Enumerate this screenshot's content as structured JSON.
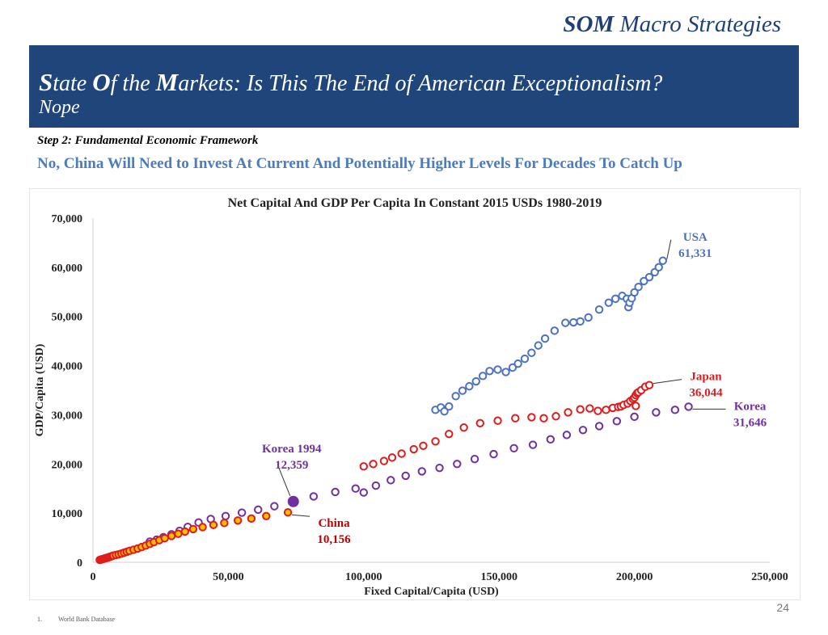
{
  "header": {
    "brand_bold": "SOM",
    "brand_rest": " Macro Strategies",
    "title_parts": [
      {
        "text": "S",
        "big": true
      },
      {
        "text": "tate ",
        "big": false
      },
      {
        "text": "O",
        "big": true
      },
      {
        "text": "f the ",
        "big": false
      },
      {
        "text": "M",
        "big": true
      },
      {
        "text": "arkets: Is This The End of American Exceptionalism?",
        "big": false
      }
    ],
    "subtitle": "Nope",
    "step": "Step 2: Fundamental Economic Framework",
    "headline": "No, China Will Need to Invest At Current And Potentially Higher Levels For Decades To Catch Up"
  },
  "footer": {
    "page_number": "24",
    "footnote_index": "1.",
    "footnote_text": "World Bank Database"
  },
  "chart_data": {
    "type": "scatter",
    "title": "Net Capital And GDP Per Capita In Constant 2015 USDs 1980-2019",
    "xlabel": "Fixed Capital/Capita (USD)",
    "ylabel": "GDP/Capita (USD)",
    "xlim": [
      0,
      250000
    ],
    "ylim": [
      0,
      70000
    ],
    "x_ticks": [
      0,
      50000,
      100000,
      150000,
      200000,
      250000
    ],
    "x_tick_labels": [
      "0",
      "50,000",
      "100,000",
      "150,000",
      "200,000",
      "250,000"
    ],
    "y_ticks": [
      0,
      10000,
      20000,
      30000,
      40000,
      50000,
      60000,
      70000
    ],
    "y_tick_labels": [
      "0",
      "10,000",
      "20,000",
      "30,000",
      "40,000",
      "50,000",
      "60,000",
      "70,000"
    ],
    "grid": false,
    "series": [
      {
        "color": "#4a72c0",
        "marker": "hollow-circle",
        "points": [
          [
            126500,
            31000
          ],
          [
            128500,
            31500
          ],
          [
            129800,
            30700
          ],
          [
            131500,
            31700
          ],
          [
            134000,
            33800
          ],
          [
            136500,
            34900
          ],
          [
            139000,
            35800
          ],
          [
            141500,
            36800
          ],
          [
            144000,
            37900
          ],
          [
            146500,
            38900
          ],
          [
            149500,
            39200
          ],
          [
            152500,
            38700
          ],
          [
            155000,
            39600
          ],
          [
            157000,
            40400
          ],
          [
            159500,
            41400
          ],
          [
            162000,
            42600
          ],
          [
            164500,
            44100
          ],
          [
            167000,
            45500
          ],
          [
            170500,
            47100
          ],
          [
            174500,
            48700
          ],
          [
            177500,
            48800
          ],
          [
            180000,
            49000
          ],
          [
            183000,
            49800
          ],
          [
            187000,
            51400
          ],
          [
            190500,
            52800
          ],
          [
            193000,
            53600
          ],
          [
            195500,
            54200
          ],
          [
            197200,
            53600
          ],
          [
            197800,
            51900
          ],
          [
            198200,
            52800
          ],
          [
            199000,
            53700
          ],
          [
            200000,
            54900
          ],
          [
            201500,
            56000
          ],
          [
            203500,
            57200
          ],
          [
            205500,
            58000
          ],
          [
            207500,
            59000
          ],
          [
            209000,
            60000
          ],
          [
            210500,
            61331
          ]
        ]
      },
      {
        "color": "#e01b1b",
        "marker": "hollow-circle",
        "points": [
          [
            100000,
            19500
          ],
          [
            103500,
            20000
          ],
          [
            107500,
            20600
          ],
          [
            110500,
            21300
          ],
          [
            114000,
            22100
          ],
          [
            118500,
            23000
          ],
          [
            122000,
            23700
          ],
          [
            126500,
            24600
          ],
          [
            131500,
            26100
          ],
          [
            137000,
            27400
          ],
          [
            143000,
            28300
          ],
          [
            149500,
            28800
          ],
          [
            156000,
            29300
          ],
          [
            162000,
            29500
          ],
          [
            166500,
            29300
          ],
          [
            171000,
            29700
          ],
          [
            175500,
            30500
          ],
          [
            180000,
            31100
          ],
          [
            183500,
            31300
          ],
          [
            186500,
            30800
          ],
          [
            189500,
            31000
          ],
          [
            192000,
            31400
          ],
          [
            194000,
            31600
          ],
          [
            195000,
            31700
          ],
          [
            196000,
            32000
          ],
          [
            197500,
            32300
          ],
          [
            198500,
            32800
          ],
          [
            199500,
            33200
          ],
          [
            200000,
            33500
          ],
          [
            200500,
            34000
          ],
          [
            201000,
            34400
          ],
          [
            201500,
            34600
          ],
          [
            202500,
            35000
          ],
          [
            204000,
            35700
          ],
          [
            205500,
            36044
          ],
          [
            200500,
            31800
          ]
        ]
      },
      {
        "color": "#7030a0",
        "marker": "hollow-circle",
        "points": [
          [
            21000,
            4200
          ],
          [
            23500,
            4600
          ],
          [
            26000,
            5100
          ],
          [
            29000,
            5700
          ],
          [
            32000,
            6400
          ],
          [
            35000,
            7200
          ],
          [
            39000,
            8100
          ],
          [
            43500,
            8800
          ],
          [
            49000,
            9400
          ],
          [
            55000,
            10100
          ],
          [
            61000,
            10700
          ],
          [
            67000,
            11400
          ],
          [
            81500,
            13400
          ],
          [
            89500,
            14300
          ],
          [
            97000,
            15000
          ],
          [
            100000,
            14200
          ],
          [
            104500,
            15600
          ],
          [
            110000,
            16700
          ],
          [
            115500,
            17600
          ],
          [
            121500,
            18500
          ],
          [
            128000,
            19200
          ],
          [
            134500,
            20000
          ],
          [
            141000,
            21000
          ],
          [
            148000,
            22000
          ],
          [
            155500,
            23200
          ],
          [
            162500,
            23900
          ],
          [
            169000,
            25000
          ],
          [
            175000,
            25900
          ],
          [
            181000,
            26900
          ],
          [
            187000,
            27700
          ],
          [
            193500,
            28700
          ],
          [
            200000,
            29600
          ],
          [
            208000,
            30500
          ],
          [
            215000,
            31000
          ],
          [
            220000,
            31646
          ]
        ]
      },
      {
        "color": "#e01b1b",
        "fill": "#ffc000",
        "marker": "filled-circle",
        "points": [
          [
            2500,
            480
          ],
          [
            3000,
            560
          ],
          [
            3500,
            640
          ],
          [
            4000,
            720
          ],
          [
            4500,
            800
          ],
          [
            5000,
            900
          ],
          [
            5500,
            980
          ],
          [
            6000,
            1070
          ],
          [
            6500,
            1160
          ],
          [
            7000,
            1260
          ],
          [
            7500,
            1360
          ],
          [
            8500,
            1480
          ],
          [
            9500,
            1620
          ],
          [
            10500,
            1780
          ],
          [
            11500,
            1950
          ],
          [
            12500,
            2130
          ],
          [
            13500,
            2330
          ],
          [
            15000,
            2550
          ],
          [
            16500,
            2800
          ],
          [
            18000,
            3100
          ],
          [
            19500,
            3400
          ],
          [
            21000,
            3750
          ],
          [
            22500,
            4100
          ],
          [
            24500,
            4500
          ],
          [
            26500,
            4900
          ],
          [
            29000,
            5350
          ],
          [
            31500,
            5800
          ],
          [
            34000,
            6250
          ],
          [
            37000,
            6750
          ],
          [
            40500,
            7150
          ],
          [
            44500,
            7600
          ],
          [
            48500,
            8000
          ],
          [
            53500,
            8500
          ],
          [
            58500,
            8900
          ],
          [
            64000,
            9400
          ],
          [
            72000,
            10156
          ]
        ]
      },
      {
        "color": "#7030a0",
        "fill": "#7030a0",
        "marker": "filled-circle-large",
        "points": [
          [
            74000,
            12359
          ]
        ]
      }
    ],
    "annotations": [
      {
        "lines": [
          "USA",
          "61,331"
        ],
        "color": "#4a72c0",
        "x": 210500,
        "y": 61331
      },
      {
        "lines": [
          "Japan",
          "36,044"
        ],
        "color": "#e01b1b",
        "x": 205500,
        "y": 36044
      },
      {
        "lines": [
          "Korea",
          "31,646"
        ],
        "color": "#7030a0",
        "x": 220000,
        "y": 31646
      },
      {
        "lines": [
          "Korea 1994",
          "12,359"
        ],
        "color": "#7030a0",
        "x": 74000,
        "y": 12359
      },
      {
        "lines": [
          "China",
          "10,156"
        ],
        "color": "#c00000",
        "x": 72000,
        "y": 10156
      }
    ]
  }
}
